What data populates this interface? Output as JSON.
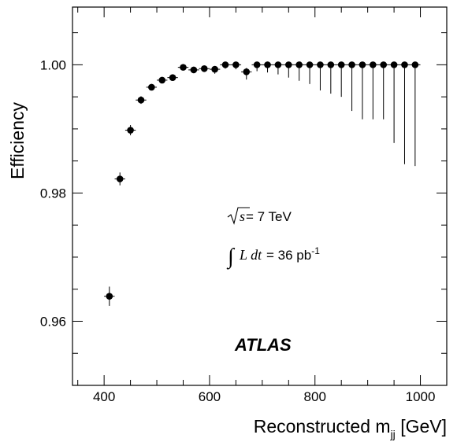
{
  "chart_data": {
    "type": "scatter",
    "xlabel": "Reconstructed m",
    "xlabel_sub": "jj",
    "xlabel_unit": "[GeV]",
    "ylabel": "Efficiency",
    "xlim": [
      340,
      1050
    ],
    "ylim": [
      0.95,
      1.009
    ],
    "x_ticks": [
      400,
      600,
      800,
      1000
    ],
    "y_ticks": [
      0.96,
      0.98,
      1.0
    ],
    "x_tick_labels": [
      "400",
      "600",
      "800",
      "1000"
    ],
    "y_tick_labels": [
      "0.96",
      "0.98",
      "1.00"
    ],
    "grid": false,
    "annotations": {
      "sqrt_s": "s",
      "energy": " = 7 TeV",
      "lumi_integral": "L dt",
      "lumi_value": " = 36 pb",
      "lumi_exp": "-1",
      "experiment": "ATLAS"
    },
    "points": [
      {
        "x": 410,
        "y": 0.9639,
        "err_up": 0.0015,
        "err_down": 0.0015
      },
      {
        "x": 430,
        "y": 0.9822,
        "err_up": 0.001,
        "err_down": 0.001
      },
      {
        "x": 450,
        "y": 0.9898,
        "err_up": 0.0008,
        "err_down": 0.0008
      },
      {
        "x": 470,
        "y": 0.9945,
        "err_up": 0.0006,
        "err_down": 0.0006
      },
      {
        "x": 490,
        "y": 0.9965,
        "err_up": 0.0005,
        "err_down": 0.0005
      },
      {
        "x": 510,
        "y": 0.9976,
        "err_up": 0.0005,
        "err_down": 0.0005
      },
      {
        "x": 530,
        "y": 0.998,
        "err_up": 0.0005,
        "err_down": 0.0005
      },
      {
        "x": 550,
        "y": 0.9996,
        "err_up": 0.0002,
        "err_down": 0.0004
      },
      {
        "x": 570,
        "y": 0.9992,
        "err_up": 0.0004,
        "err_down": 0.0004
      },
      {
        "x": 590,
        "y": 0.9994,
        "err_up": 0.0004,
        "err_down": 0.0005
      },
      {
        "x": 610,
        "y": 0.9993,
        "err_up": 0.0004,
        "err_down": 0.0007
      },
      {
        "x": 630,
        "y": 1.0,
        "err_up": 0.0,
        "err_down": 0.0006
      },
      {
        "x": 650,
        "y": 1.0,
        "err_up": 0.0,
        "err_down": 0.0007
      },
      {
        "x": 670,
        "y": 0.9989,
        "err_up": 0.0006,
        "err_down": 0.0012
      },
      {
        "x": 690,
        "y": 1.0,
        "err_up": 0.0,
        "err_down": 0.001
      },
      {
        "x": 710,
        "y": 1.0,
        "err_up": 0.0,
        "err_down": 0.0012
      },
      {
        "x": 730,
        "y": 1.0,
        "err_up": 0.0,
        "err_down": 0.0015
      },
      {
        "x": 750,
        "y": 1.0,
        "err_up": 0.0,
        "err_down": 0.002
      },
      {
        "x": 770,
        "y": 1.0,
        "err_up": 0.0,
        "err_down": 0.0025
      },
      {
        "x": 790,
        "y": 1.0,
        "err_up": 0.0,
        "err_down": 0.003
      },
      {
        "x": 810,
        "y": 1.0,
        "err_up": 0.0,
        "err_down": 0.004
      },
      {
        "x": 830,
        "y": 1.0,
        "err_up": 0.0,
        "err_down": 0.0045
      },
      {
        "x": 850,
        "y": 1.0,
        "err_up": 0.0,
        "err_down": 0.005
      },
      {
        "x": 870,
        "y": 1.0,
        "err_up": 0.0,
        "err_down": 0.0072
      },
      {
        "x": 890,
        "y": 1.0,
        "err_up": 0.0,
        "err_down": 0.0085
      },
      {
        "x": 910,
        "y": 1.0,
        "err_up": 0.0,
        "err_down": 0.0085
      },
      {
        "x": 930,
        "y": 1.0,
        "err_up": 0.0,
        "err_down": 0.0085
      },
      {
        "x": 950,
        "y": 1.0,
        "err_up": 0.0,
        "err_down": 0.0122
      },
      {
        "x": 970,
        "y": 1.0,
        "err_up": 0.0,
        "err_down": 0.0155
      },
      {
        "x": 990,
        "y": 1.0,
        "err_up": 0.0,
        "err_down": 0.0158
      }
    ]
  }
}
